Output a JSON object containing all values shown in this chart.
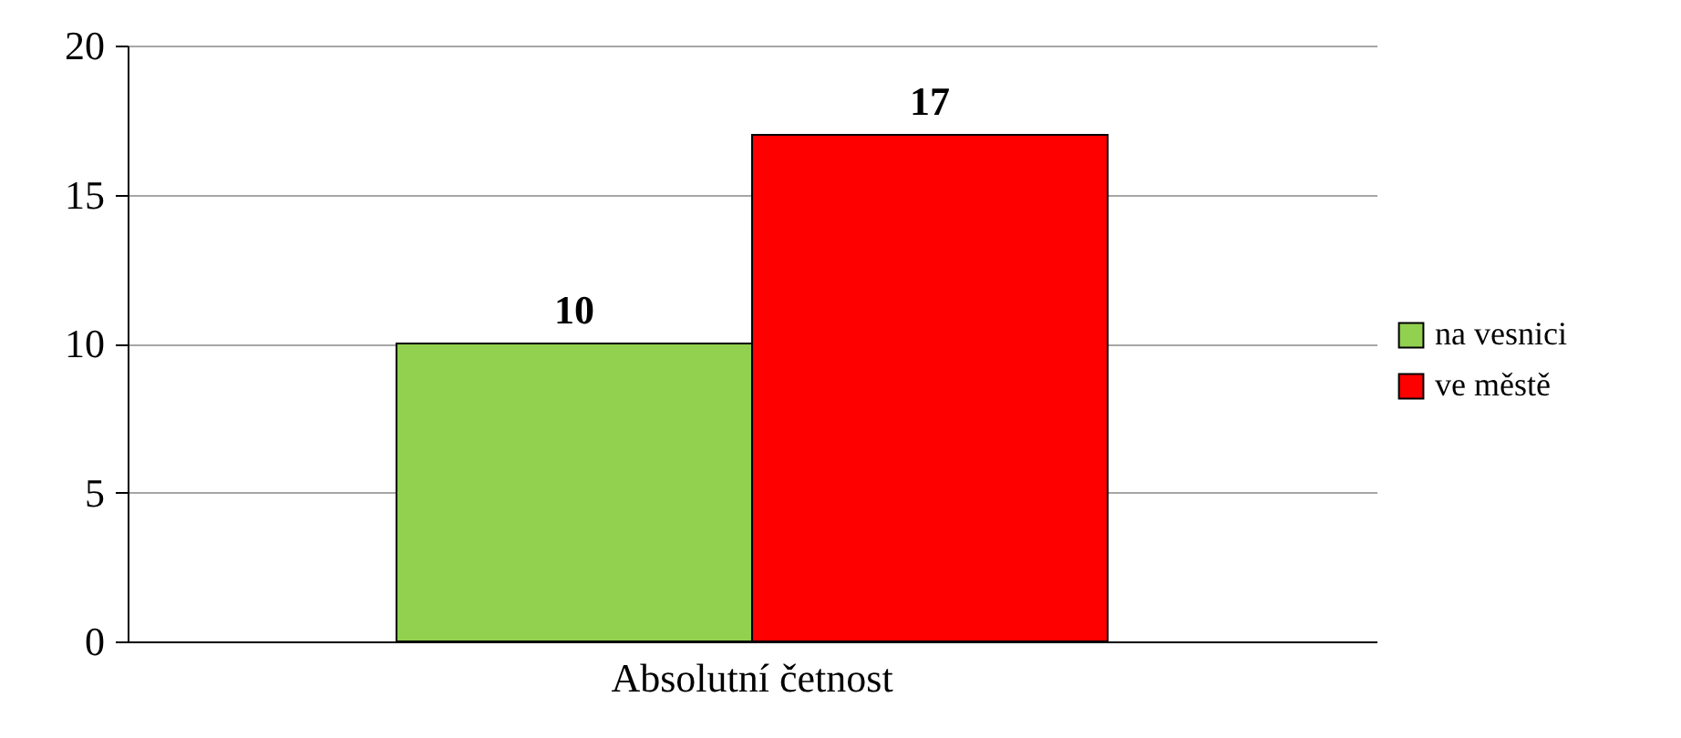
{
  "chart_data": {
    "type": "bar",
    "categories": [
      "Absolutní četnost"
    ],
    "series": [
      {
        "name": "na vesnici",
        "color": "#92d050",
        "values": [
          10
        ]
      },
      {
        "name": "ve městě",
        "color": "#ff0000",
        "values": [
          17
        ]
      }
    ],
    "ylim": [
      0,
      20
    ],
    "yticks": [
      0,
      5,
      10,
      15,
      20
    ],
    "grid": "y",
    "legend": "right",
    "data_labels": true
  }
}
